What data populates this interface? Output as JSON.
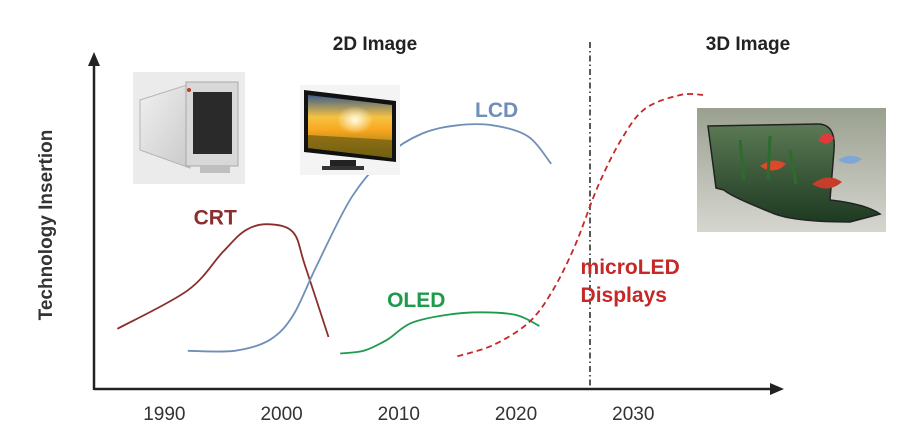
{
  "chart_data": {
    "type": "line",
    "ylabel": "Technology Insertion",
    "xlabel": "",
    "x_ticks": [
      1990,
      2000,
      2010,
      2020,
      2030
    ],
    "xlim": [
      1984,
      2042
    ],
    "ylim": [
      0,
      100
    ],
    "regions": [
      {
        "label": "2D Image",
        "x_center": 2007
      },
      {
        "label": "3D Image",
        "x_center": 2035
      }
    ],
    "divider_x": 2025,
    "series": [
      {
        "name": "CRT",
        "color": "#8b2e2e",
        "style": "solid",
        "label_pos": [
          1992.5,
          53
        ],
        "points": [
          [
            1986,
            15
          ],
          [
            1992,
            29
          ],
          [
            1995,
            43
          ],
          [
            1997,
            51
          ],
          [
            1999,
            53
          ],
          [
            2001,
            50
          ],
          [
            2002,
            38
          ],
          [
            2004,
            12
          ]
        ]
      },
      {
        "name": "LCD",
        "color": "#6f8fb8",
        "style": "solid",
        "label_pos": [
          2016.5,
          92
        ],
        "points": [
          [
            1992,
            7
          ],
          [
            1996,
            7
          ],
          [
            1999,
            11
          ],
          [
            2001,
            20
          ],
          [
            2003,
            38
          ],
          [
            2006,
            63
          ],
          [
            2009,
            78
          ],
          [
            2012,
            86
          ],
          [
            2015,
            89
          ],
          [
            2018,
            89
          ],
          [
            2021,
            85
          ],
          [
            2023,
            75
          ]
        ]
      },
      {
        "name": "OLED",
        "color": "#1e9a4c",
        "style": "solid",
        "label_pos": [
          2009,
          23
        ],
        "points": [
          [
            2005,
            6
          ],
          [
            2007,
            7
          ],
          [
            2009,
            11
          ],
          [
            2011,
            17
          ],
          [
            2014,
            20
          ],
          [
            2017,
            21
          ],
          [
            2020,
            20
          ],
          [
            2022,
            16
          ]
        ]
      },
      {
        "name": "microLED\nDisplays",
        "color": "#c62828",
        "style": "dashed",
        "label_pos": [
          2025.5,
          35
        ],
        "points": [
          [
            2015,
            5
          ],
          [
            2018,
            9
          ],
          [
            2021,
            17
          ],
          [
            2023,
            28
          ],
          [
            2025,
            45
          ],
          [
            2027,
            67
          ],
          [
            2029,
            84
          ],
          [
            2031,
            95
          ],
          [
            2034,
            100
          ],
          [
            2036,
            100
          ]
        ]
      }
    ]
  },
  "images": [
    {
      "name": "crt-monitor-image",
      "alt": "crt-monitor"
    },
    {
      "name": "lcd-tv-image",
      "alt": "lcd-tv"
    },
    {
      "name": "curved-3d-display-image",
      "alt": "curved-display"
    }
  ]
}
